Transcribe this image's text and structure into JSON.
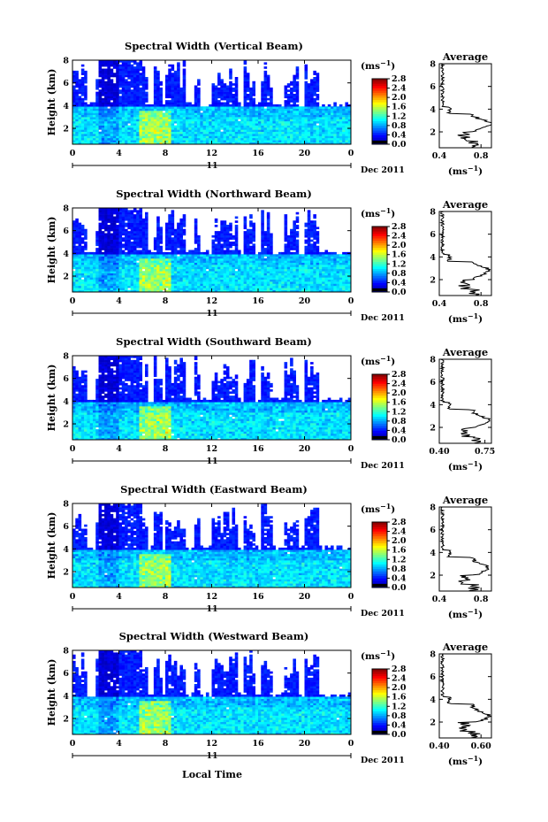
{
  "figure": {
    "xlabel": "Local Time",
    "date_label": "Dec 2011",
    "day_label": "11",
    "colorbar_unit": "(ms",
    "colorbar_unit_exp": "−1",
    "avg_title": "Average",
    "avg_unit": "(ms",
    "avg_unit_exp": "−1",
    "avg_unit_close": ")"
  },
  "chart_data": [
    {
      "type": "heatmap",
      "title": "Spectral Width (Vertical Beam)",
      "ylabel": "Height (km)",
      "x_ticks": [
        "0",
        "4",
        "8",
        "12",
        "16",
        "20",
        "0"
      ],
      "y_ticks": [
        "2",
        "4",
        "6",
        "8"
      ],
      "xlim": [
        0,
        24
      ],
      "ylim": [
        0.6,
        8
      ],
      "colorbar": {
        "range": [
          0.0,
          2.8
        ],
        "ticks": [
          "0.0",
          "0.4",
          "0.8",
          "1.2",
          "1.6",
          "2.0",
          "2.4",
          "2.8"
        ]
      },
      "average": {
        "x_ticks": [
          "0.4",
          "0.8"
        ],
        "xlim": [
          0.4,
          0.9
        ],
        "y_ticks": [
          "2",
          "4",
          "6",
          "8"
        ],
        "peak_height": 2.7
      }
    },
    {
      "type": "heatmap",
      "title": "Spectral Width (Northward Beam)",
      "ylabel": "Height (km)",
      "x_ticks": [
        "0",
        "4",
        "8",
        "12",
        "16",
        "20",
        "0"
      ],
      "y_ticks": [
        "2",
        "4",
        "6",
        "8"
      ],
      "xlim": [
        0,
        24
      ],
      "ylim": [
        0.6,
        8
      ],
      "colorbar": {
        "range": [
          0.0,
          2.8
        ],
        "ticks": [
          "0.0",
          "0.4",
          "0.8",
          "1.2",
          "1.6",
          "2.0",
          "2.4",
          "2.8"
        ]
      },
      "average": {
        "x_ticks": [
          "0.4",
          "0.8"
        ],
        "xlim": [
          0.4,
          0.9
        ],
        "y_ticks": [
          "2",
          "4",
          "6",
          "8"
        ],
        "peak_height": 2.8
      }
    },
    {
      "type": "heatmap",
      "title": "Spectral Width (Southward Beam)",
      "ylabel": "Height (km)",
      "x_ticks": [
        "0",
        "4",
        "8",
        "12",
        "16",
        "20",
        "0"
      ],
      "y_ticks": [
        "2",
        "4",
        "6",
        "8"
      ],
      "xlim": [
        0,
        24
      ],
      "ylim": [
        0.6,
        8
      ],
      "colorbar": {
        "range": [
          0.0,
          2.8
        ],
        "ticks": [
          "0.0",
          "0.4",
          "0.8",
          "1.2",
          "1.6",
          "2.0",
          "2.4",
          "2.8"
        ]
      },
      "average": {
        "x_ticks": [
          "0.40",
          "0.75"
        ],
        "xlim": [
          0.4,
          0.8
        ],
        "y_ticks": [
          "2",
          "4",
          "6",
          "8"
        ],
        "peak_height": 2.6
      }
    },
    {
      "type": "heatmap",
      "title": "Spectral Width (Eastward Beam)",
      "ylabel": "Height (km)",
      "x_ticks": [
        "0",
        "4",
        "8",
        "12",
        "16",
        "20",
        "0"
      ],
      "y_ticks": [
        "2",
        "4",
        "6",
        "8"
      ],
      "xlim": [
        0,
        24
      ],
      "ylim": [
        0.6,
        8
      ],
      "colorbar": {
        "range": [
          0.0,
          2.8
        ],
        "ticks": [
          "0.0",
          "0.4",
          "0.8",
          "1.2",
          "1.6",
          "2.0",
          "2.4",
          "2.8"
        ]
      },
      "average": {
        "x_ticks": [
          "0.4",
          "0.8"
        ],
        "xlim": [
          0.4,
          0.9
        ],
        "y_ticks": [
          "2",
          "4",
          "6",
          "8"
        ],
        "peak_height": 2.6
      }
    },
    {
      "type": "heatmap",
      "title": "Spectral Width (Westward Beam)",
      "ylabel": "Height (km)",
      "x_ticks": [
        "0",
        "4",
        "8",
        "12",
        "16",
        "20",
        "0"
      ],
      "y_ticks": [
        "2",
        "4",
        "6",
        "8"
      ],
      "xlim": [
        0,
        24
      ],
      "ylim": [
        0.6,
        8
      ],
      "colorbar": {
        "range": [
          0.0,
          2.8
        ],
        "ticks": [
          "0.0",
          "0.4",
          "0.8",
          "1.2",
          "1.6",
          "2.0",
          "2.4",
          "2.8"
        ]
      },
      "average": {
        "x_ticks": [
          "0.40",
          "0.60"
        ],
        "xlim": [
          0.4,
          0.65
        ],
        "y_ticks": [
          "2",
          "4",
          "6",
          "8"
        ],
        "peak_height": 2.5
      }
    }
  ]
}
